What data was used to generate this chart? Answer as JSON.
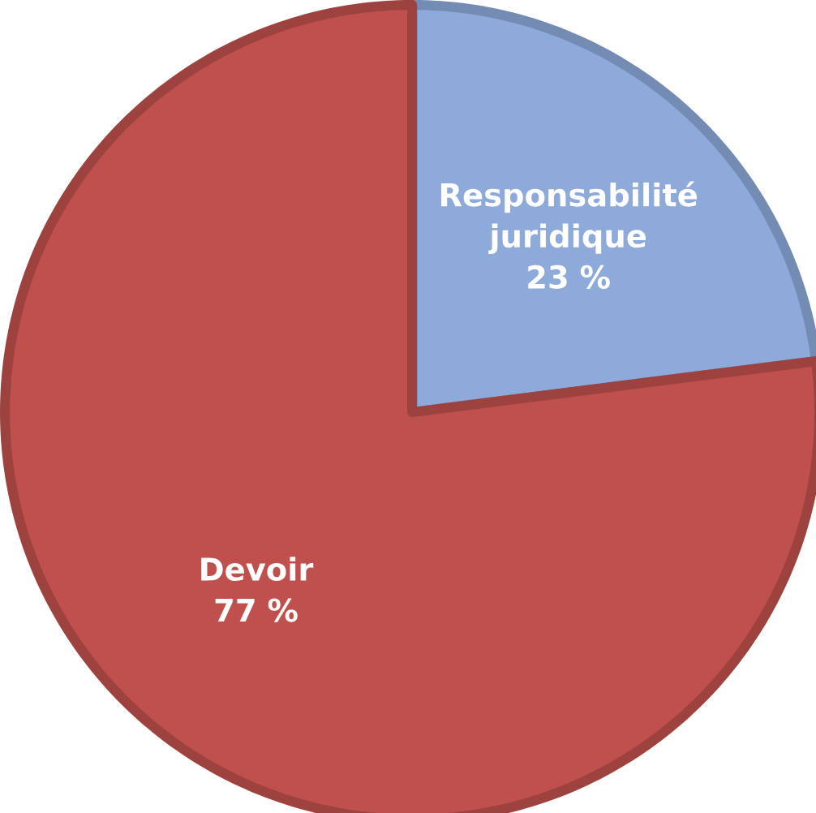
{
  "chart_data": {
    "type": "pie",
    "categories": [
      "Responsabilité juridique",
      "Devoir"
    ],
    "values": [
      23,
      77
    ],
    "colors": [
      "#8eaadb",
      "#c0504d"
    ],
    "value_labels": [
      "23 %",
      "77 %"
    ]
  }
}
